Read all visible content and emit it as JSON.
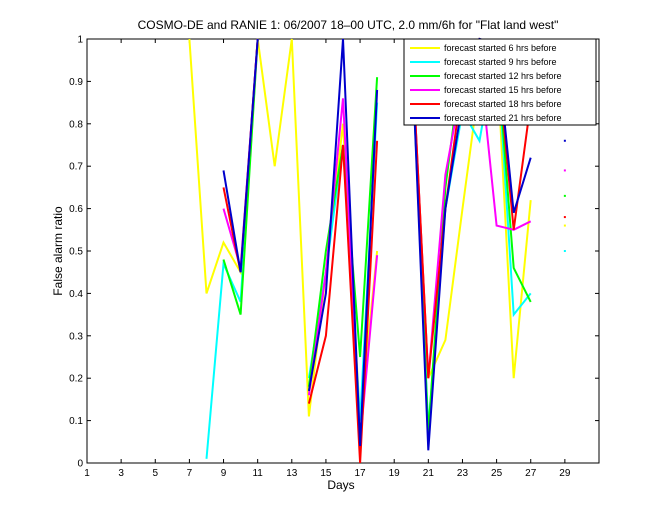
{
  "chart_data": {
    "type": "line",
    "title": "COSMO-DE and RANIE 1: 06/2007 18–00 UTC, 2.0 mm/6h for \"Flat land west\"",
    "xlabel": "Days",
    "ylabel": "False alarm ratio",
    "xlim": [
      1,
      31
    ],
    "ylim": [
      0,
      1
    ],
    "xticks": [
      1,
      3,
      5,
      7,
      9,
      11,
      13,
      15,
      17,
      19,
      21,
      23,
      25,
      27,
      29
    ],
    "yticks": [
      0,
      0.1,
      0.2,
      0.3,
      0.4,
      0.5,
      0.6,
      0.7,
      0.8,
      0.9,
      1
    ],
    "ytick_labels": [
      "0",
      "0.1",
      "0.2",
      "0.3",
      "0.4",
      "0.5",
      "0.6",
      "0.7",
      "0.8",
      "0.9",
      "1"
    ],
    "legend_position": "top-right",
    "series": [
      {
        "name": "forecast started 6 hrs before",
        "color": "#ffff00",
        "points": [
          [
            7,
            1
          ],
          [
            8,
            0.4
          ],
          [
            9,
            0.52
          ],
          [
            10,
            0.45
          ],
          [
            11,
            1
          ],
          [
            12,
            0.7
          ],
          [
            13,
            1
          ],
          [
            14,
            0.11
          ],
          [
            15,
            0.45
          ],
          [
            16,
            0.8
          ],
          [
            17,
            0.1
          ],
          [
            18,
            0.5
          ],
          [
            null,
            null
          ],
          [
            20,
            1
          ],
          [
            21,
            0.2
          ],
          [
            22,
            0.29
          ],
          [
            23,
            0.6
          ],
          [
            24,
            0.9
          ],
          [
            25,
            0.97
          ],
          [
            26,
            0.2
          ],
          [
            27,
            0.62
          ],
          [
            null,
            null
          ],
          [
            29,
            0.56
          ]
        ]
      },
      {
        "name": "forecast started 9 hrs before",
        "color": "#00ffff",
        "points": [
          [
            8,
            0.01
          ],
          [
            9,
            0.47
          ],
          [
            10,
            0.38
          ],
          [
            11,
            1
          ],
          [
            null,
            null
          ],
          [
            14,
            0.2
          ],
          [
            15,
            0.45
          ],
          [
            16,
            0.75
          ],
          [
            17,
            0.1
          ],
          [
            18,
            0.85
          ],
          [
            null,
            null
          ],
          [
            20,
            1
          ],
          [
            21,
            0.08
          ],
          [
            22,
            0.6
          ],
          [
            23,
            0.83
          ],
          [
            24,
            0.76
          ],
          [
            25,
            0.99
          ],
          [
            26,
            0.35
          ],
          [
            27,
            0.4
          ],
          [
            null,
            null
          ],
          [
            29,
            0.5
          ]
        ]
      },
      {
        "name": "forecast started 12 hrs before",
        "color": "#00ff00",
        "points": [
          [
            9,
            0.48
          ],
          [
            10,
            0.35
          ],
          [
            11,
            1
          ],
          [
            null,
            null
          ],
          [
            14,
            0.18
          ],
          [
            15,
            0.5
          ],
          [
            16,
            0.75
          ],
          [
            17,
            0.25
          ],
          [
            18,
            0.91
          ],
          [
            null,
            null
          ],
          [
            20,
            1
          ],
          [
            21,
            0.07
          ],
          [
            22,
            0.65
          ],
          [
            23,
            0.96
          ],
          [
            24,
            1
          ],
          [
            25,
            0.98
          ],
          [
            26,
            0.46
          ],
          [
            27,
            0.38
          ],
          [
            null,
            null
          ],
          [
            29,
            0.63
          ]
        ]
      },
      {
        "name": "forecast started 15 hrs before",
        "color": "#ff00ff",
        "points": [
          [
            9,
            0.6
          ],
          [
            10,
            0.46
          ],
          [
            11,
            1
          ],
          [
            null,
            null
          ],
          [
            14,
            0.16
          ],
          [
            15,
            0.45
          ],
          [
            16,
            0.86
          ],
          [
            17,
            0.05
          ],
          [
            18,
            0.49
          ],
          [
            null,
            null
          ],
          [
            20,
            1
          ],
          [
            21,
            0.2
          ],
          [
            22,
            0.68
          ],
          [
            23,
            0.9
          ],
          [
            24,
            0.95
          ],
          [
            25,
            0.56
          ],
          [
            26,
            0.55
          ],
          [
            27,
            0.57
          ],
          [
            null,
            null
          ],
          [
            29,
            0.69
          ]
        ]
      },
      {
        "name": "forecast started 18 hrs before",
        "color": "#ff0000",
        "points": [
          [
            9,
            0.65
          ],
          [
            10,
            0.45
          ],
          [
            11,
            1
          ],
          [
            null,
            null
          ],
          [
            14,
            0.14
          ],
          [
            15,
            0.3
          ],
          [
            16,
            0.75
          ],
          [
            17,
            0
          ],
          [
            18,
            0.76
          ],
          [
            null,
            null
          ],
          [
            20,
            1
          ],
          [
            21,
            0.2
          ],
          [
            22,
            0.6
          ],
          [
            23,
            0.9
          ],
          [
            24,
            1
          ],
          [
            25,
            0.98
          ],
          [
            26,
            0.55
          ],
          [
            27,
            0.85
          ],
          [
            null,
            null
          ],
          [
            29,
            0.58
          ]
        ]
      },
      {
        "name": "forecast started 21 hrs before",
        "color": "#0000cc",
        "points": [
          [
            9,
            0.69
          ],
          [
            10,
            0.45
          ],
          [
            11,
            1
          ],
          [
            null,
            null
          ],
          [
            14,
            0.17
          ],
          [
            15,
            0.4
          ],
          [
            16,
            1
          ],
          [
            17,
            0.04
          ],
          [
            18,
            0.88
          ],
          [
            null,
            null
          ],
          [
            20,
            1
          ],
          [
            21,
            0.03
          ],
          [
            22,
            0.6
          ],
          [
            23,
            0.85
          ],
          [
            24,
            1
          ],
          [
            25,
            0.99
          ],
          [
            26,
            0.59
          ],
          [
            27,
            0.72
          ],
          [
            null,
            null
          ],
          [
            29,
            0.76
          ]
        ]
      }
    ]
  }
}
